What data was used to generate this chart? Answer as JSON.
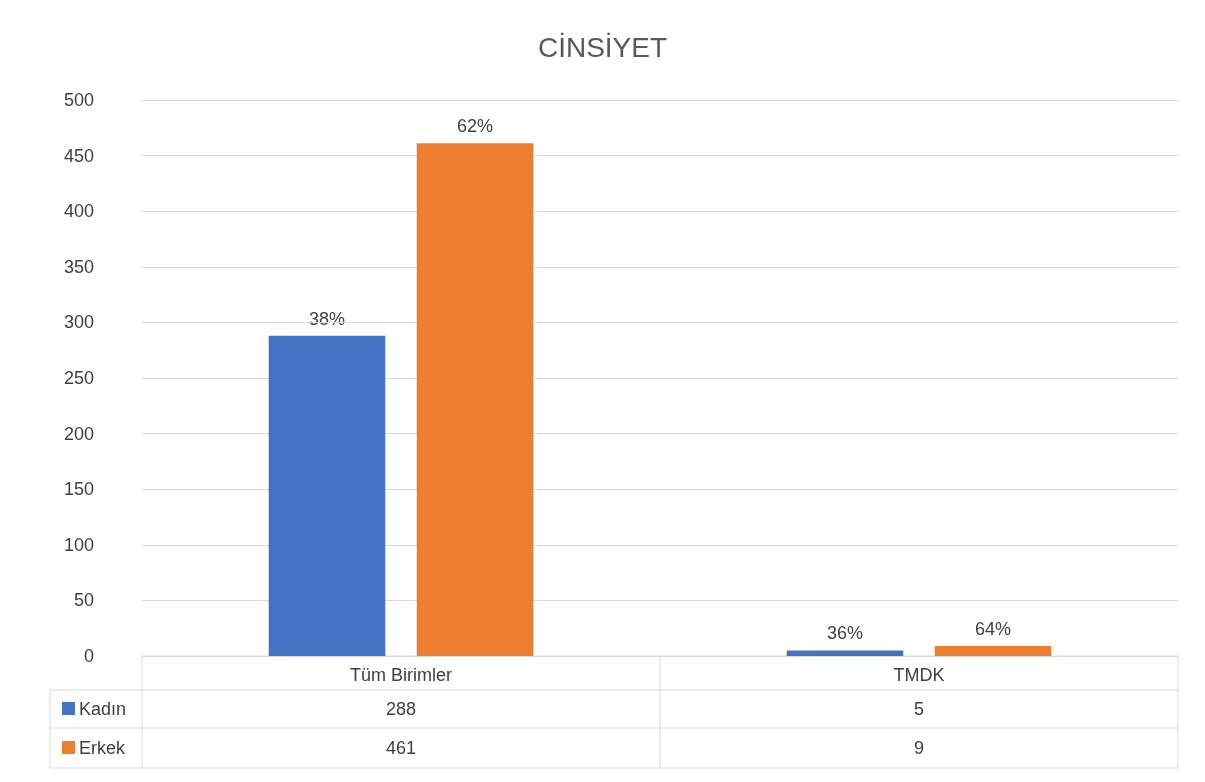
{
  "chart_data": {
    "type": "bar",
    "title": "CİNSİYET",
    "categories": [
      "Tüm Birimler",
      "TMDK"
    ],
    "series": [
      {
        "name": "Kadın",
        "color": "#4472c4",
        "values": [
          288,
          5
        ]
      },
      {
        "name": "Erkek",
        "color": "#ed7d31",
        "values": [
          461,
          9
        ]
      }
    ],
    "annotations": [
      "38%",
      "62%",
      "36%",
      "64%"
    ],
    "ylim": [
      0,
      500
    ],
    "yticks": [
      0,
      50,
      100,
      150,
      200,
      250,
      300,
      350,
      400,
      450,
      500
    ],
    "grid": "y",
    "legend": "bottom",
    "data_labels": true
  }
}
